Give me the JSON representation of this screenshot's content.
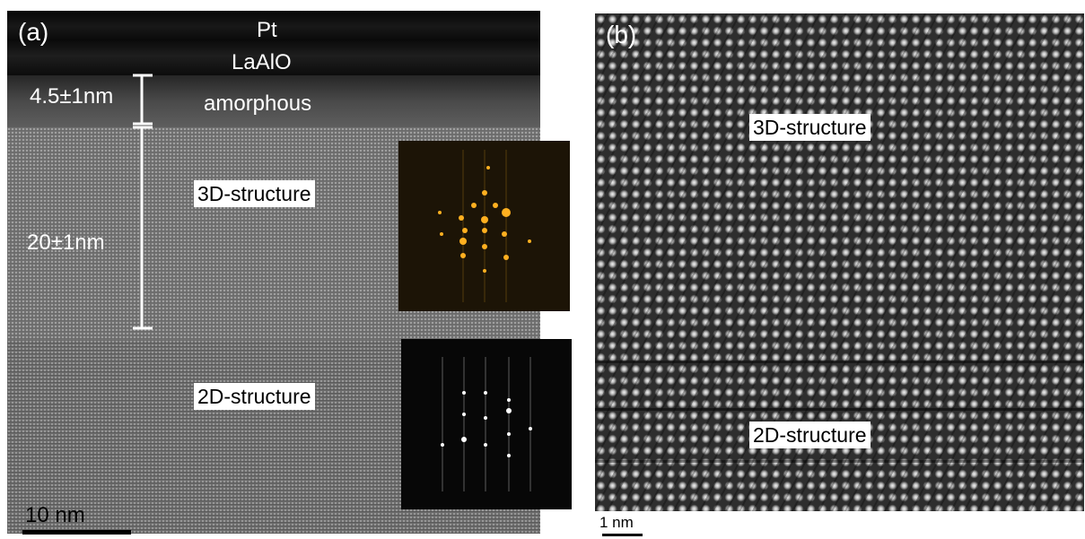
{
  "panel_a": {
    "letter": "(a)",
    "layer_top": "Pt",
    "layer_second": "LaAlO",
    "amorphous_label": "amorphous",
    "thickness_amorphous": "4.5±1nm",
    "thickness_3d": "20±1nm",
    "structure_3d_label": "3D-structure",
    "structure_2d_label": "2D-structure",
    "scale_label": "10 nm"
  },
  "panel_b": {
    "letter": "(b)",
    "structure_3d_label": "3D-structure",
    "structure_2d_label": "2D-structure",
    "scale_label": "1 nm"
  },
  "colors": {
    "fft_3d_spot": "#ffb020",
    "fft_2d_spot": "#ffffff",
    "label_bg": "#ffffff"
  }
}
